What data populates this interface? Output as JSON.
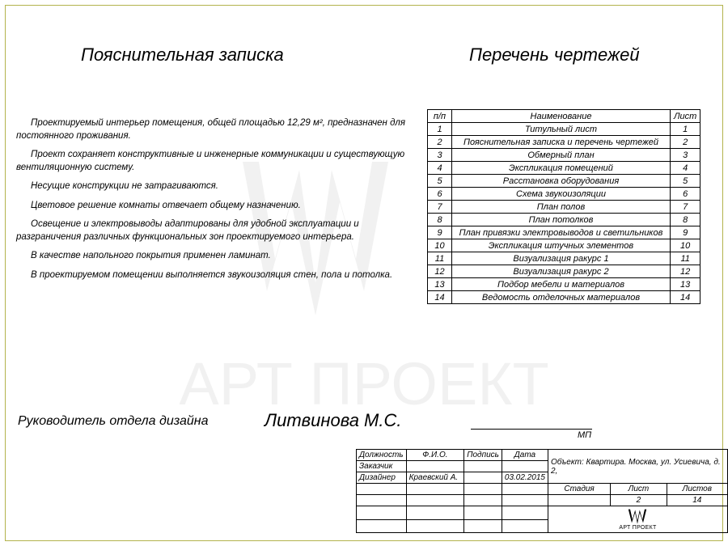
{
  "style": {
    "frame_color": "#b3b34d",
    "text_color": "#000000",
    "bg_color": "#ffffff",
    "font": "italic sans-serif",
    "wm_opacity": 0.05,
    "wm_fill": "#000000"
  },
  "heading_left": "Пояснительная записка",
  "heading_right": "Перечень чертежей",
  "note_paragraphs": [
    "Проектируемый интерьер помещения, общей площадью 12,29 м², предназначен для постоянного проживания.",
    "Проект сохраняет конструктивные и инженерные коммуникации и существующую вентиляционную систему.",
    "Несущие конструкции не затрагиваются.",
    "Цветовое решение комнаты отвечает общему назначению.",
    "Освещение и электровыводы адаптированы для удобной эксплуатации и разграничения различных функциональных зон проектируемого интерьера.",
    "В качестве напольного покрытия применен ламинат.",
    "В проектируемом помещении выполняется звукоизоляция стен, пола и потолка."
  ],
  "drawings": {
    "head_n": "п/п",
    "head_name": "Наименование",
    "head_sheet": "Лист",
    "rows": [
      {
        "n": "1",
        "name": "Титульный лист",
        "sheet": "1"
      },
      {
        "n": "2",
        "name": "Пояснительная записка и перечень чертежей",
        "sheet": "2"
      },
      {
        "n": "3",
        "name": "Обмерный план",
        "sheet": "3"
      },
      {
        "n": "4",
        "name": "Экспликация помещений",
        "sheet": "4"
      },
      {
        "n": "5",
        "name": "Расстановка оборудования",
        "sheet": "5"
      },
      {
        "n": "6",
        "name": "Схема звукоизоляции",
        "sheet": "6"
      },
      {
        "n": "7",
        "name": "План полов",
        "sheet": "7"
      },
      {
        "n": "8",
        "name": "План потолков",
        "sheet": "8"
      },
      {
        "n": "9",
        "name": "План привязки электровыводов и светильников",
        "sheet": "9"
      },
      {
        "n": "10",
        "name": "Экспликация штучных элементов",
        "sheet": "10"
      },
      {
        "n": "11",
        "name": "Визуализация ракурс 1",
        "sheet": "11"
      },
      {
        "n": "12",
        "name": "Визуализация ракурс 2",
        "sheet": "12"
      },
      {
        "n": "13",
        "name": "Подбор мебели и материалов",
        "sheet": "13"
      },
      {
        "n": "14",
        "name": "Ведомость отделочных материалов",
        "sheet": "14"
      }
    ]
  },
  "signature": {
    "role": "Руководитель отдела дизайна",
    "name": "Литвинова М.С.",
    "mp": "МП"
  },
  "stamp": {
    "labels": {
      "post": "Должность",
      "fio": "Ф.И.О.",
      "sign": "Подпись",
      "date": "Дата",
      "object_prefix": "Объект:",
      "stage": "Стадия",
      "sheet": "Лист",
      "sheets": "Листов"
    },
    "client_row_label": "Заказчик",
    "designer_row_label": "Дизайнер",
    "designer_name": "Краевский А.",
    "designer_date": "03.02.2015",
    "object_text": "Квартира. Москва, ул. Усиевича, д. 2,",
    "sheet_no": "2",
    "sheets_total": "14",
    "logo_text": "АРТ ПРОЕКТ"
  },
  "watermark_text": "АРТ ПРОЕКТ"
}
